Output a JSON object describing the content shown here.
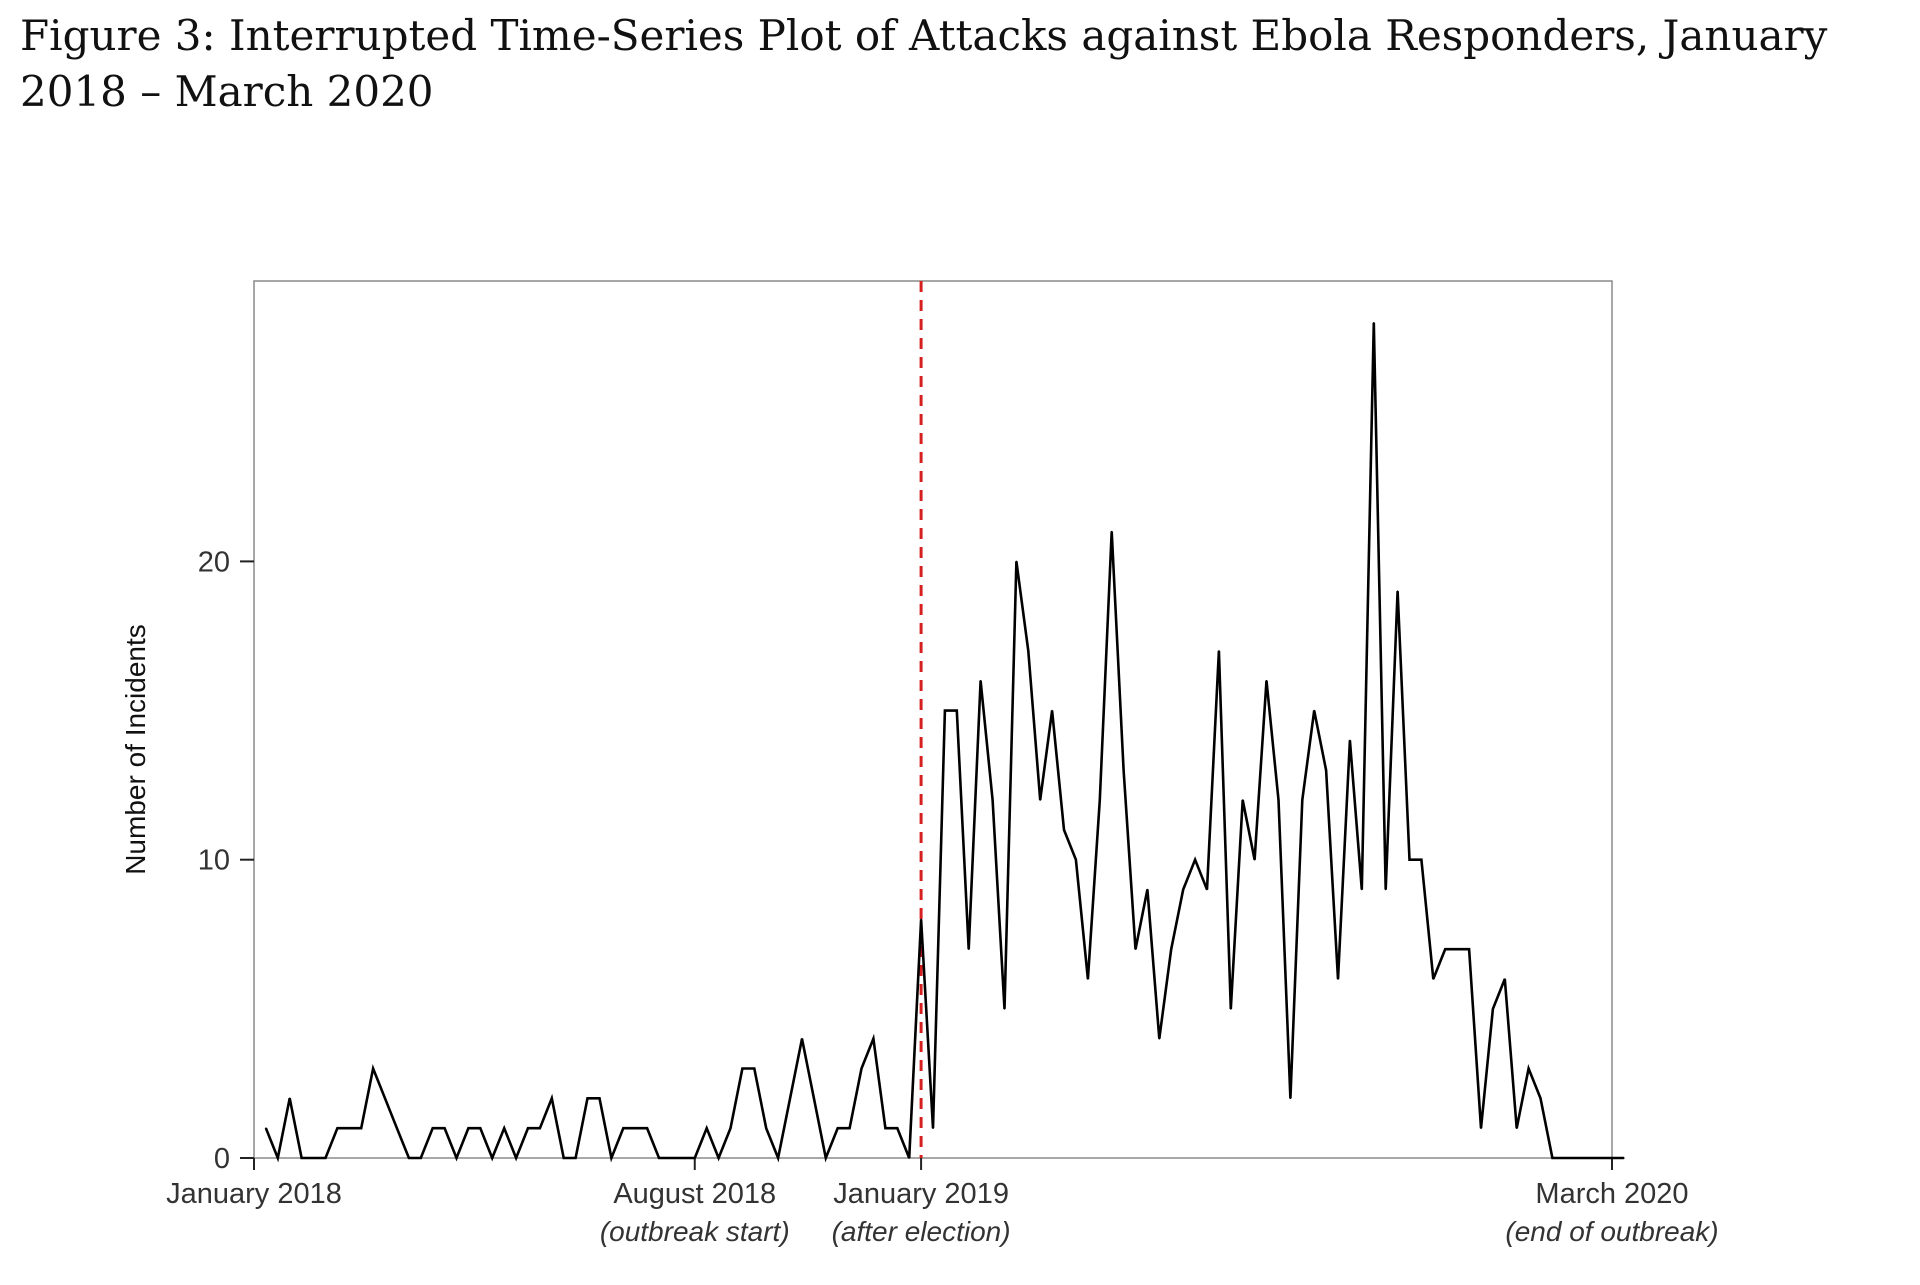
{
  "figure": {
    "title": "Figure 3: Interrupted Time-Series Plot of Attacks against Ebola Responders, January 2018 – March 2020"
  },
  "chart_data": {
    "type": "line",
    "title": "Figure 3: Interrupted Time-Series Plot of Attacks against Ebola Responders, January 2018 – March 2020",
    "xlabel": "",
    "ylabel": "Number of Incidents",
    "ylim": [
      0,
      29.4
    ],
    "y_ticks": [
      0,
      10,
      20
    ],
    "grid": false,
    "x_unit": "week",
    "x_start": "January 2018",
    "x_end": "March 2020",
    "x_ticks": [
      {
        "label": "January 2018",
        "sub": "",
        "week": 0
      },
      {
        "label": "August 2018",
        "sub": "(outbreak start)",
        "week": 37
      },
      {
        "label": "January 2019",
        "sub": "(after election)",
        "week": 56
      },
      {
        "label": "March 2020",
        "sub": "(end of outbreak)",
        "week": 114
      }
    ],
    "intervention": {
      "week": 56,
      "color": "#d62020",
      "style": "dashed"
    },
    "line_color": "#000000",
    "series": [
      {
        "name": "",
        "values": [
          1,
          0,
          2,
          0,
          0,
          0,
          1,
          1,
          1,
          3,
          2,
          1,
          0,
          0,
          1,
          1,
          0,
          1,
          1,
          0,
          1,
          0,
          1,
          1,
          2,
          0,
          0,
          2,
          2,
          0,
          1,
          1,
          1,
          0,
          0,
          0,
          0,
          1,
          0,
          1,
          3,
          3,
          1,
          0,
          2,
          4,
          2,
          0,
          1,
          1,
          3,
          4,
          1,
          1,
          0,
          8,
          1,
          15,
          15,
          7,
          16,
          12,
          5,
          20,
          17,
          12,
          15,
          11,
          10,
          6,
          12,
          21,
          13,
          7,
          9,
          4,
          7,
          9,
          10,
          9,
          17,
          5,
          12,
          10,
          16,
          12,
          2,
          12,
          15,
          13,
          6,
          14,
          9,
          28,
          9,
          19,
          10,
          10,
          6,
          7,
          7,
          7,
          1,
          5,
          6,
          1,
          3,
          2,
          0,
          0,
          0,
          0,
          0,
          0,
          0
        ]
      }
    ]
  }
}
